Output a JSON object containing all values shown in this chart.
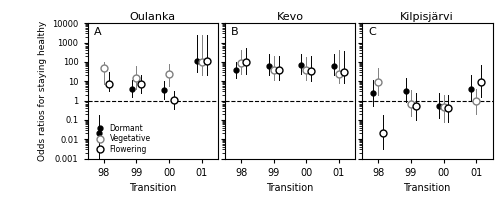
{
  "panels": [
    {
      "title": "Oulanka",
      "label": "A",
      "xticks": [
        "98",
        "99",
        "00",
        "01"
      ],
      "xvals": [
        0,
        1,
        2,
        3
      ],
      "dormant": {
        "y": [
          0.02,
          4.0,
          3.5,
          110.0
        ],
        "ylo": [
          0.001,
          1.5,
          1.2,
          30.0
        ],
        "yhi": [
          0.18,
          12.0,
          10.0,
          2500.0
        ]
      },
      "vegetative": {
        "y": [
          50.0,
          15.0,
          25.0,
          100.0
        ],
        "ylo": [
          7.0,
          4.0,
          6.0,
          20.0
        ],
        "yhi": [
          100.0,
          60.0,
          80.0,
          2500.0
        ]
      },
      "flowering": {
        "y": [
          7.0,
          7.0,
          1.1,
          110.0
        ],
        "ylo": [
          3.0,
          2.5,
          0.35,
          20.0
        ],
        "yhi": [
          30.0,
          20.0,
          3.0,
          2500.0
        ]
      }
    },
    {
      "title": "Kevo",
      "label": "B",
      "xticks": [
        "98",
        "99",
        "00",
        "01"
      ],
      "xvals": [
        0,
        1,
        2,
        3
      ],
      "dormant": {
        "y": [
          40.0,
          60.0,
          70.0,
          65.0
        ],
        "ylo": [
          15.0,
          20.0,
          25.0,
          20.0
        ],
        "yhi": [
          100.0,
          250.0,
          250.0,
          250.0
        ]
      },
      "vegetative": {
        "y": [
          90.0,
          40.0,
          40.0,
          25.0
        ],
        "ylo": [
          25.0,
          12.0,
          12.0,
          8.0
        ],
        "yhi": [
          400.0,
          200.0,
          180.0,
          400.0
        ]
      },
      "flowering": {
        "y": [
          100.0,
          40.0,
          35.0,
          30.0
        ],
        "ylo": [
          25.0,
          12.0,
          10.0,
          8.0
        ],
        "yhi": [
          500.0,
          200.0,
          200.0,
          350.0
        ]
      }
    },
    {
      "title": "Kilpisjärvi",
      "label": "C",
      "xticks": [
        "98",
        "99",
        "00",
        "01"
      ],
      "xvals": [
        0,
        1,
        2,
        3
      ],
      "dormant": {
        "y": [
          2.5,
          3.0,
          0.5,
          4.0
        ],
        "ylo": [
          0.5,
          0.8,
          0.12,
          0.9
        ],
        "yhi": [
          12.0,
          15.0,
          2.5,
          20.0
        ]
      },
      "vegetative": {
        "y": [
          9.0,
          0.7,
          0.45,
          0.9
        ],
        "ylo": [
          2.0,
          0.15,
          0.08,
          0.2
        ],
        "yhi": [
          50.0,
          3.5,
          2.0,
          4.0
        ]
      },
      "flowering": {
        "y": [
          0.02,
          0.5,
          0.4,
          9.0
        ],
        "ylo": [
          0.003,
          0.1,
          0.08,
          1.5
        ],
        "yhi": [
          0.18,
          2.5,
          2.0,
          70.0
        ]
      }
    }
  ],
  "ylabel": "Odds ratios for staying healthy",
  "xlabel": "Transition",
  "ylim": [
    0.001,
    10000
  ],
  "offsets": [
    -0.15,
    0.0,
    0.15
  ],
  "legend_labels": [
    "Dormant",
    "Vegetative",
    "Flowering"
  ]
}
